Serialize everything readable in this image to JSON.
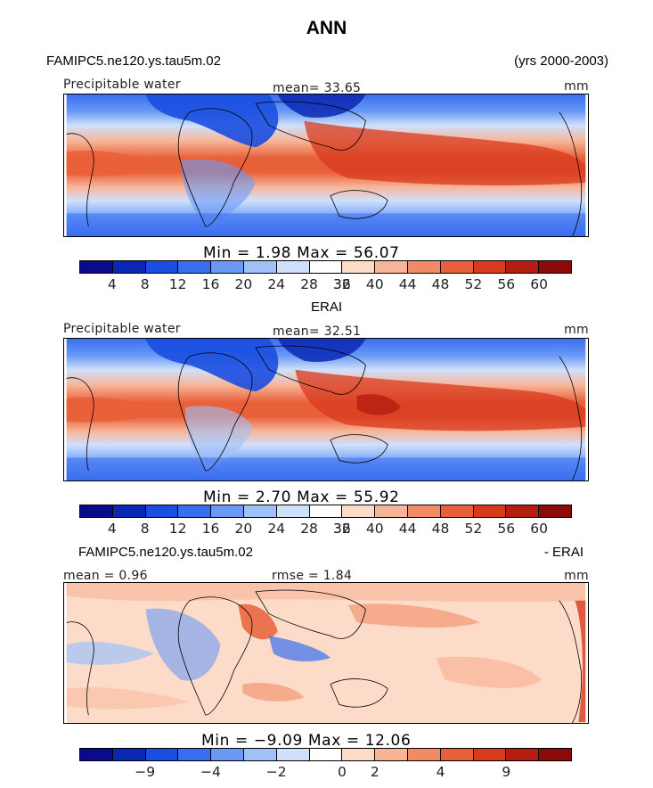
{
  "title": "ANN",
  "panels": [
    {
      "case_name": "FAMIPC5.ne120.ys.tau5m.02",
      "years": "(yrs 2000-2003)",
      "variable": "Precipitable water",
      "mean_text": "mean=  33.65",
      "units": "mm",
      "stats_text": "Min =    1.98  Max =   56.07",
      "colorbar": {
        "labels": [
          "4",
          "8",
          "12",
          "16",
          "20",
          "24",
          "28",
          "32",
          "36",
          "40",
          "44",
          "48",
          "52",
          "56",
          "60"
        ],
        "colors": [
          "#0a0a8c",
          "#0a28b4",
          "#1a4ee0",
          "#3a6ef0",
          "#6a9af5",
          "#a0c0f8",
          "#d0e0fc",
          "#ffffff",
          "#fcdcc8",
          "#f8b496",
          "#f28a66",
          "#e8603a",
          "#d83a1e",
          "#b41e10",
          "#8c0a0a"
        ]
      }
    },
    {
      "case_name": "ERAI",
      "variable": "Precipitable water",
      "mean_text": "mean=  32.51",
      "units": "mm",
      "stats_text": "Min =    2.70  Max =   55.92",
      "colorbar": {
        "labels": [
          "4",
          "8",
          "12",
          "16",
          "20",
          "24",
          "28",
          "32",
          "36",
          "40",
          "44",
          "48",
          "52",
          "56",
          "60"
        ],
        "colors": [
          "#0a0a8c",
          "#0a28b4",
          "#1a4ee0",
          "#3a6ef0",
          "#6a9af5",
          "#a0c0f8",
          "#d0e0fc",
          "#ffffff",
          "#fcdcc8",
          "#f8b496",
          "#f28a66",
          "#e8603a",
          "#d83a1e",
          "#b41e10",
          "#8c0a0a"
        ]
      }
    },
    {
      "case_name": "FAMIPC5.ne120.ys.tau5m.02",
      "suffix": "- ERAI",
      "mean_text": "mean =   0.96",
      "rmse_text": "rmse =   1.84",
      "units": "mm",
      "stats_text": "Min =  −9.09  Max =  12.06",
      "colorbar": {
        "labels": [
          "−9",
          "−4",
          "−2",
          "0",
          "2",
          "4",
          "9"
        ],
        "colors": [
          "#0a0a8c",
          "#0a28b4",
          "#1a4ee0",
          "#3a6ef0",
          "#6a9af5",
          "#a0c0f8",
          "#d0e0fc",
          "#ffffff",
          "#fcdcc8",
          "#f8b496",
          "#f28a66",
          "#e8603a",
          "#d83a1e",
          "#b41e10",
          "#8c0a0a"
        ]
      }
    }
  ],
  "chart_data": {
    "type": "heatmap",
    "title": "ANN",
    "subplots": [
      {
        "name": "FAMIPC5.ne120.ys.tau5m.02",
        "variable": "Precipitable water",
        "units": "mm",
        "mean": 33.65,
        "min": 1.98,
        "max": 56.07,
        "years": "2000-2003",
        "contour_levels": [
          4,
          8,
          12,
          16,
          20,
          24,
          28,
          32,
          36,
          40,
          44,
          48,
          52,
          56,
          60
        ]
      },
      {
        "name": "ERAI",
        "variable": "Precipitable water",
        "units": "mm",
        "mean": 32.51,
        "min": 2.7,
        "max": 55.92,
        "contour_levels": [
          4,
          8,
          12,
          16,
          20,
          24,
          28,
          32,
          36,
          40,
          44,
          48,
          52,
          56,
          60
        ]
      },
      {
        "name": "FAMIPC5.ne120.ys.tau5m.02 - ERAI",
        "units": "mm",
        "mean": 0.96,
        "rmse": 1.84,
        "min": -9.09,
        "max": 12.06,
        "contour_levels": [
          -9,
          -4,
          -2,
          0,
          2,
          4,
          9
        ]
      }
    ]
  }
}
